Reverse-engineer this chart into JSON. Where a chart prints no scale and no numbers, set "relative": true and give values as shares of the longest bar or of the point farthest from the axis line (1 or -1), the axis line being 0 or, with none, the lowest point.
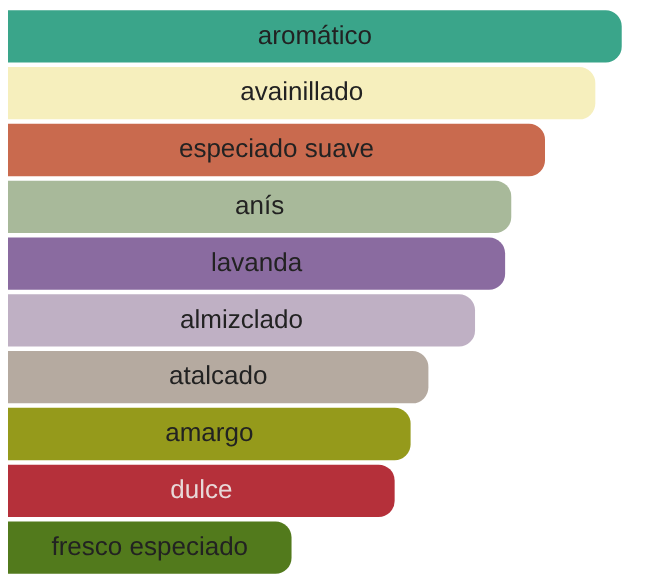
{
  "chart_data": {
    "type": "bar",
    "orientation": "horizontal",
    "relative": true,
    "categories": [
      "aromático",
      "avainillado",
      "especiado suave",
      "anís",
      "lavanda",
      "almizclado",
      "atalcado",
      "amargo",
      "dulce",
      "fresco especiado"
    ],
    "values": [
      1,
      0.957,
      0.875,
      0.82,
      0.81,
      0.761,
      0.685,
      0.656,
      0.63,
      0.462
    ],
    "colors": [
      "#3aa58a",
      "#f6efbd",
      "#c96a4e",
      "#a8b99a",
      "#8a6ba0",
      "#bfb0c4",
      "#b5aaa0",
      "#959a1b",
      "#b5303a",
      "#527a1c"
    ]
  }
}
